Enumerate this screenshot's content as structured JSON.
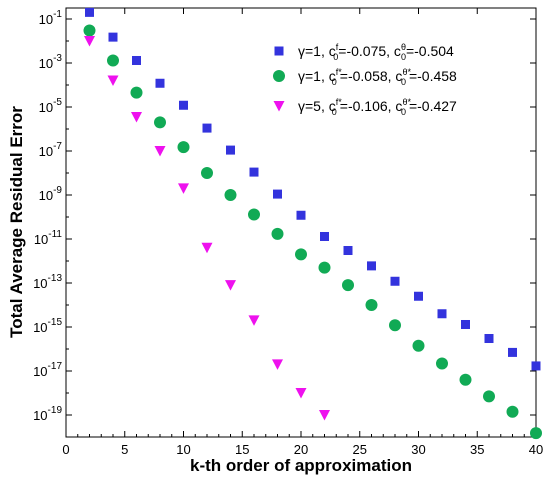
{
  "chart_data": {
    "type": "scatter",
    "xlabel": "k-th order of approximation",
    "ylabel": "Total Average Residual Error",
    "xlim": [
      0,
      40
    ],
    "ylim_exp": [
      -20,
      -0.5
    ],
    "y_scale": "log",
    "grid": false,
    "legend_position": "top-right",
    "x_ticks": [
      "0",
      "5",
      "10",
      "15",
      "20",
      "25",
      "30",
      "35",
      "40"
    ],
    "y_ticks": [
      {
        "base": "10",
        "exp": "-1"
      },
      {
        "base": "10",
        "exp": "-3"
      },
      {
        "base": "10",
        "exp": "-5"
      },
      {
        "base": "10",
        "exp": "-7"
      },
      {
        "base": "10",
        "exp": "-9"
      },
      {
        "base": "10",
        "exp": "-11"
      },
      {
        "base": "10",
        "exp": "-13"
      },
      {
        "base": "10",
        "exp": "-15"
      },
      {
        "base": "10",
        "exp": "-17"
      },
      {
        "base": "10",
        "exp": "-19"
      }
    ],
    "series": [
      {
        "marker": "square",
        "color": "#3333dd",
        "label_pre": "γ=1, c",
        "label_mid1": ", c",
        "label_post": "=-0.504",
        "c1_sup": "f",
        "c1_sub": "0",
        "c1_val": "=-0.075",
        "c2_sup": "θ",
        "c2_sub": "0",
        "x": [
          2,
          4,
          6,
          8,
          10,
          12,
          14,
          16,
          18,
          20,
          22,
          24,
          26,
          28,
          30,
          32,
          34,
          36,
          38,
          40
        ],
        "y": [
          0.2,
          0.015,
          0.0013,
          0.00012,
          1.2e-05,
          1.1e-06,
          1.1e-07,
          1.1e-08,
          1.1e-09,
          1.2e-10,
          1.3e-11,
          3e-12,
          6e-13,
          1.2e-13,
          2.5e-14,
          4e-15,
          1.3e-15,
          3e-16,
          7e-17,
          1.7e-17
        ]
      },
      {
        "marker": "circle",
        "color": "#11aa55",
        "label_pre": "γ=1, c",
        "label_mid1": ", c",
        "label_post": "=-0.458",
        "c1_sup": "f*",
        "c1_sub": "0",
        "c1_val": "=-0.058",
        "c2_sup": "θ*",
        "c2_sub": "0",
        "x": [
          2,
          4,
          6,
          8,
          10,
          12,
          14,
          16,
          18,
          20,
          22,
          24,
          26,
          28,
          30,
          32,
          34,
          36,
          38,
          40
        ],
        "y": [
          0.03,
          0.0013,
          4.5e-05,
          2e-06,
          1.5e-07,
          1e-08,
          1e-09,
          1.3e-10,
          1.7e-11,
          2e-12,
          5e-13,
          8e-14,
          1e-14,
          1.2e-15,
          1.4e-16,
          2.2e-17,
          4e-18,
          7e-19,
          1.4e-19,
          1.5e-20
        ]
      },
      {
        "marker": "triangle-down",
        "color": "#ee11ee",
        "label_pre": "γ=5, c",
        "label_mid1": ", c",
        "label_post": "=-0.427",
        "c1_sup": "f*",
        "c1_sub": "0",
        "c1_val": "=-0.106",
        "c2_sup": "θ*",
        "c2_sub": "0",
        "x": [
          2,
          4,
          6,
          8,
          10,
          12,
          14,
          16,
          18,
          20,
          22
        ],
        "y": [
          0.01,
          0.00016,
          3.5e-06,
          1e-07,
          2e-09,
          4e-12,
          8e-14,
          2e-15,
          2e-17,
          1e-18,
          1e-19
        ]
      }
    ]
  }
}
